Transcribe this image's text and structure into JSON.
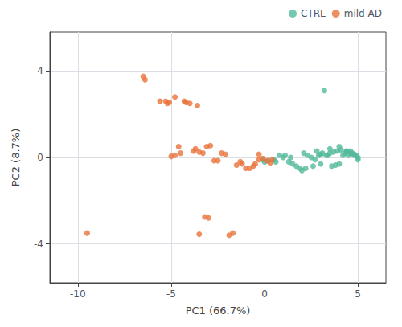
{
  "chart_data": {
    "type": "scatter",
    "xlabel": "PC1 (66.7%)",
    "ylabel": "PC2 (8.7%)",
    "series": [
      {
        "name": "CTRL",
        "color": "#53B99B",
        "x": [
          3.2,
          2.8,
          3.0,
          3.3,
          3.5,
          3.7,
          3.9,
          4.1,
          4.3,
          4.5,
          4.6,
          4.7,
          4.8,
          4.9,
          5.0,
          5.0,
          4.8,
          4.6,
          4.4,
          4.2,
          4.0,
          3.8,
          3.6,
          3.4,
          3.1,
          2.9,
          2.7,
          2.5,
          2.3,
          2.1,
          1.9,
          1.7,
          1.5,
          1.3,
          1.0,
          0.8,
          0.5,
          0.2,
          0.0,
          -0.1,
          2.0,
          2.2,
          2.6,
          3.0,
          1.1,
          1.4,
          3.5,
          4.0,
          4.4,
          0.6
        ],
        "values": [
          3.1,
          0.3,
          0.15,
          0.1,
          0.2,
          0.25,
          0.3,
          0.35,
          0.2,
          0.1,
          0.3,
          0.2,
          0.15,
          0.1,
          0.0,
          -0.1,
          0.1,
          0.2,
          0.3,
          0.1,
          -0.3,
          -0.35,
          -0.4,
          0.1,
          0.2,
          0.1,
          -0.1,
          0.0,
          0.1,
          0.2,
          -0.5,
          -0.4,
          -0.3,
          -0.2,
          0.0,
          0.1,
          -0.1,
          -0.15,
          -0.2,
          -0.1,
          -0.6,
          -0.5,
          -0.4,
          -0.3,
          0.1,
          0.0,
          0.4,
          0.5,
          0.3,
          -0.2
        ]
      },
      {
        "name": "mild AD",
        "color": "#E8733A",
        "x": [
          -9.5,
          -6.5,
          -6.4,
          -5.3,
          -5.2,
          -5.1,
          -5.0,
          -4.8,
          -4.8,
          -4.5,
          -4.3,
          -4.2,
          -4.0,
          -3.8,
          -3.7,
          -3.6,
          -3.5,
          -3.3,
          -3.1,
          -2.9,
          -2.7,
          -2.5,
          -2.3,
          -2.1,
          -1.9,
          -1.7,
          -1.5,
          -1.3,
          -1.0,
          -0.8,
          -0.6,
          -0.3,
          -0.1,
          0.1,
          0.3,
          0.4,
          -0.5,
          -1.2,
          -3.0,
          -3.2,
          -4.6,
          -5.6,
          -3.5,
          -0.3
        ],
        "values": [
          -3.5,
          3.75,
          3.6,
          2.6,
          2.5,
          2.55,
          0.05,
          0.1,
          2.8,
          0.2,
          2.6,
          2.55,
          2.5,
          0.3,
          0.4,
          2.4,
          0.25,
          0.2,
          0.5,
          0.55,
          -0.15,
          -0.15,
          0.2,
          0.15,
          -3.6,
          -3.5,
          -0.35,
          -0.2,
          -0.5,
          -0.5,
          -0.4,
          -0.1,
          -0.05,
          -0.15,
          -0.25,
          -0.1,
          -0.3,
          -0.3,
          -2.8,
          -2.75,
          0.5,
          2.6,
          -3.55,
          0.15
        ]
      }
    ],
    "xlim": [
      -11.5,
      6.5
    ],
    "ylim": [
      -5.8,
      5.8
    ],
    "xticks": [
      -10,
      -5,
      0,
      5
    ],
    "yticks": [
      -4,
      0,
      4
    ],
    "grid": true,
    "legend": "upper right"
  }
}
